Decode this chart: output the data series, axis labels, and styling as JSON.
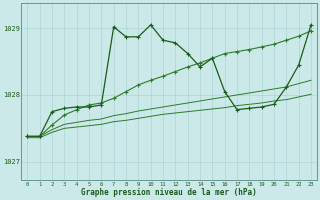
{
  "title": "Graphe pression niveau de la mer (hPa)",
  "hours": [
    0,
    1,
    2,
    3,
    4,
    5,
    6,
    7,
    8,
    9,
    10,
    11,
    12,
    13,
    14,
    15,
    16,
    17,
    18,
    19,
    20,
    21,
    22,
    23
  ],
  "ylim": [
    1026.72,
    1029.38
  ],
  "yticks": [
    1027,
    1028,
    1029
  ],
  "bg_color": "#cce9e9",
  "grid_color": "#b0d8d8",
  "dark_green": "#1a5c1a",
  "mid_green": "#2d7a2d",
  "line_jagged_y": [
    1027.38,
    1027.38,
    1027.75,
    1027.8,
    1027.82,
    1027.82,
    1027.85,
    1029.02,
    1028.87,
    1028.87,
    1029.05,
    1028.82,
    1028.78,
    1028.62,
    1028.42,
    1028.55,
    1028.05,
    1027.78,
    1027.8,
    1027.82,
    1027.86,
    1028.12,
    1028.45,
    1029.05
  ],
  "line_diag_y": [
    1027.38,
    1027.38,
    1027.55,
    1027.7,
    1027.78,
    1027.85,
    1027.88,
    1027.95,
    1028.05,
    1028.15,
    1028.22,
    1028.28,
    1028.35,
    1028.42,
    1028.48,
    1028.55,
    1028.62,
    1028.65,
    1028.68,
    1028.72,
    1028.76,
    1028.82,
    1028.88,
    1028.96
  ],
  "line_band_upper_y": [
    1027.38,
    1027.38,
    1027.48,
    1027.56,
    1027.59,
    1027.62,
    1027.64,
    1027.69,
    1027.72,
    1027.76,
    1027.79,
    1027.82,
    1027.85,
    1027.88,
    1027.91,
    1027.94,
    1027.97,
    1028.0,
    1028.03,
    1028.06,
    1028.09,
    1028.12,
    1028.17,
    1028.22
  ],
  "line_band_lower_y": [
    1027.36,
    1027.36,
    1027.44,
    1027.5,
    1027.52,
    1027.54,
    1027.56,
    1027.6,
    1027.62,
    1027.65,
    1027.68,
    1027.71,
    1027.73,
    1027.75,
    1027.77,
    1027.79,
    1027.81,
    1027.84,
    1027.86,
    1027.88,
    1027.91,
    1027.93,
    1027.97,
    1028.01
  ]
}
